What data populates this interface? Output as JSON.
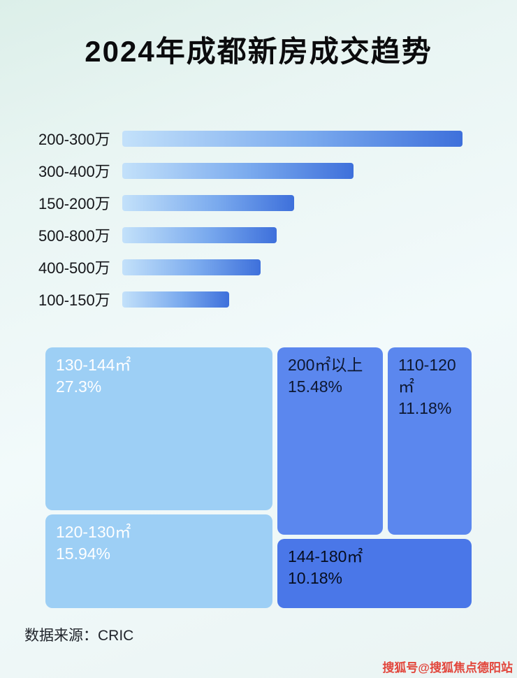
{
  "page": {
    "title": "2024年成都新房成交趋势",
    "source": "数据来源：CRIC",
    "watermark": "搜狐号@搜狐焦点德阳站"
  },
  "colors": {
    "bar_gradient_start": "#c3e1fa",
    "bar_gradient_end": "#3e70db",
    "treemap_light": "#9dcff5",
    "treemap_medium": "#5b87ee",
    "treemap_dark": "#4a77e8",
    "watermark": "#e2453b"
  },
  "chart_data": [
    {
      "type": "bar",
      "orientation": "horizontal",
      "categories": [
        "200-300万",
        "300-400万",
        "150-200万",
        "500-800万",
        "400-500万",
        "100-150万"
      ],
      "relative_lengths_pct": [
        100,
        68,
        50.5,
        45.4,
        40.6,
        31.5
      ],
      "xlabel": "",
      "ylabel": "",
      "grid": false,
      "legend": false
    },
    {
      "type": "heatmap",
      "subtype": "treemap",
      "items": [
        {
          "label": "130-144㎡",
          "value_pct": 27.3,
          "value_label": "27.3%"
        },
        {
          "label": "200㎡以上",
          "value_pct": 15.48,
          "value_label": "15.48%"
        },
        {
          "label": "110-120㎡",
          "value_pct": 11.18,
          "value_label": "11.18%"
        },
        {
          "label": "120-130㎡",
          "value_pct": 15.94,
          "value_label": "15.94%"
        },
        {
          "label": "144-180㎡",
          "value_pct": 10.18,
          "value_label": "10.18%"
        }
      ],
      "legend": false
    }
  ]
}
